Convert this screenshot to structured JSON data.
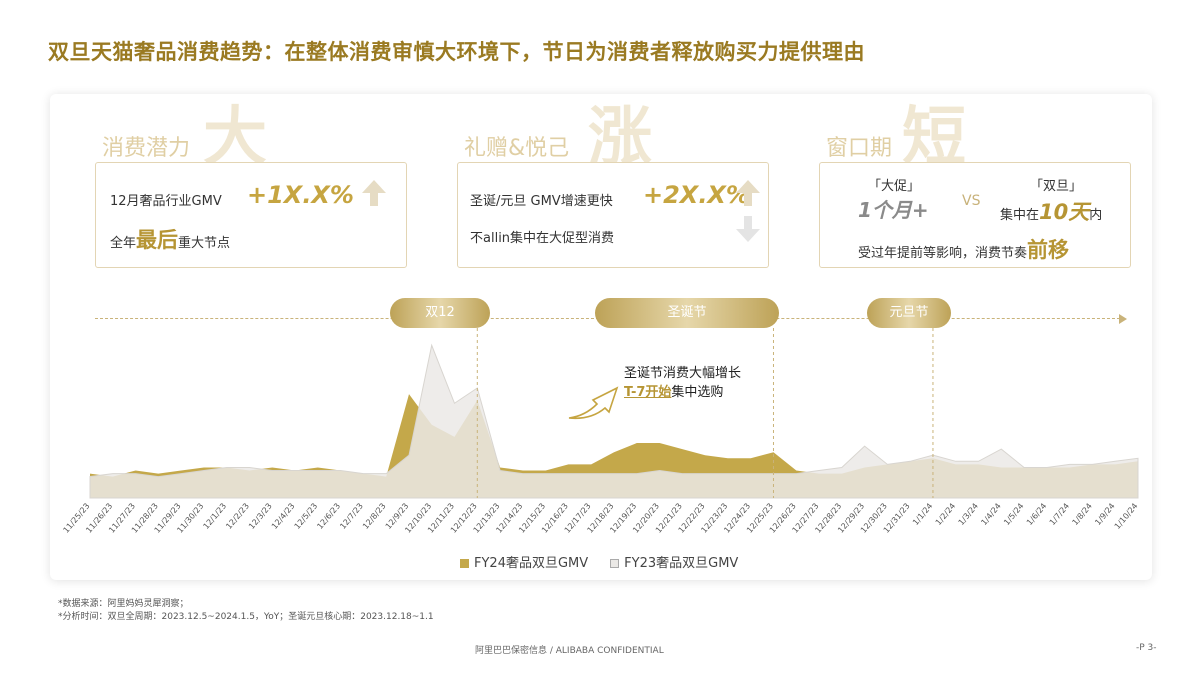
{
  "title": "双旦天猫奢品消费趋势：在整体消费审慎大环境下，节日为消费者释放购买力提供理由",
  "cards": [
    {
      "label": "消费潜力",
      "big": "大",
      "line1_pre": "12月奢品行业GMV",
      "line1_metric": "+1X.X%",
      "line2_pre": "全年",
      "line2_em": "最后",
      "line2_post": "重大节点"
    },
    {
      "label": "礼赠&悦己",
      "big": "涨",
      "line1_pre": "圣诞/元旦 GMV增速更快",
      "line1_metric": "+2X.X%",
      "line2_pre": "不allin集中在大促型消费"
    },
    {
      "label": "窗口期",
      "big": "短",
      "a_title": "「大促」",
      "a_value": "1个月+",
      "vs": "VS",
      "b_title": "「双旦」",
      "b_pre": "集中在",
      "b_em": "10天",
      "b_post": "内",
      "line2_pre": "受过年提前等影响，消费节奏",
      "line2_em": "前移"
    }
  ],
  "events": [
    "双12",
    "圣诞节",
    "元旦节"
  ],
  "annotation": {
    "line1": "圣诞节消费大幅增长",
    "hl": "T-7开始",
    "post": "集中选购"
  },
  "chart_data": {
    "type": "area",
    "x": [
      "11/25/23",
      "11/26/23",
      "11/27/23",
      "11/28/23",
      "11/29/23",
      "11/30/23",
      "12/1/23",
      "12/2/23",
      "12/3/23",
      "12/4/23",
      "12/5/23",
      "12/6/23",
      "12/7/23",
      "12/8/23",
      "12/9/23",
      "12/10/23",
      "12/11/23",
      "12/12/23",
      "12/13/23",
      "12/14/23",
      "12/15/23",
      "12/16/23",
      "12/17/23",
      "12/18/23",
      "12/19/23",
      "12/20/23",
      "12/21/23",
      "12/22/23",
      "12/23/23",
      "12/24/23",
      "12/25/23",
      "12/26/23",
      "12/27/23",
      "12/28/23",
      "12/29/23",
      "12/30/23",
      "12/31/23",
      "1/1/24",
      "1/2/24",
      "1/3/24",
      "1/4/24",
      "1/5/24",
      "1/6/24",
      "1/7/24",
      "1/8/24",
      "1/9/24",
      "1/10/24"
    ],
    "series": [
      {
        "name": "FY24奢品双旦GMV",
        "color": "#c4a84a",
        "values": [
          8,
          7,
          9,
          8,
          9,
          10,
          10,
          9,
          10,
          9,
          10,
          9,
          8,
          7,
          34,
          24,
          20,
          32,
          10,
          9,
          9,
          11,
          11,
          15,
          18,
          18,
          16,
          14,
          13,
          13,
          15,
          9,
          8,
          8,
          10,
          11,
          12,
          13,
          11,
          11,
          10,
          10,
          10,
          10,
          11,
          11,
          12
        ]
      },
      {
        "name": "FY23奢品双旦GMV",
        "color": "#ebe9e6",
        "values": [
          7,
          8,
          8,
          7,
          8,
          9,
          10,
          10,
          9,
          9,
          9,
          9,
          8,
          8,
          14,
          50,
          31,
          36,
          9,
          8,
          8,
          8,
          8,
          8,
          8,
          9,
          8,
          8,
          8,
          8,
          8,
          8,
          9,
          10,
          17,
          11,
          12,
          14,
          12,
          12,
          16,
          10,
          10,
          11,
          11,
          12,
          13
        ]
      }
    ],
    "ylim": [
      0,
      55
    ]
  },
  "notes": [
    "*数据来源：阿里妈妈灵犀洞察；",
    "*分析时间：双旦全周期：2023.12.5~2024.1.5，YoY；圣诞元旦核心期：2023.12.18~1.1"
  ],
  "footer": {
    "confidential": "阿里巴巴保密信息 / ALIBABA CONFIDENTIAL",
    "page": "-P 3-"
  }
}
